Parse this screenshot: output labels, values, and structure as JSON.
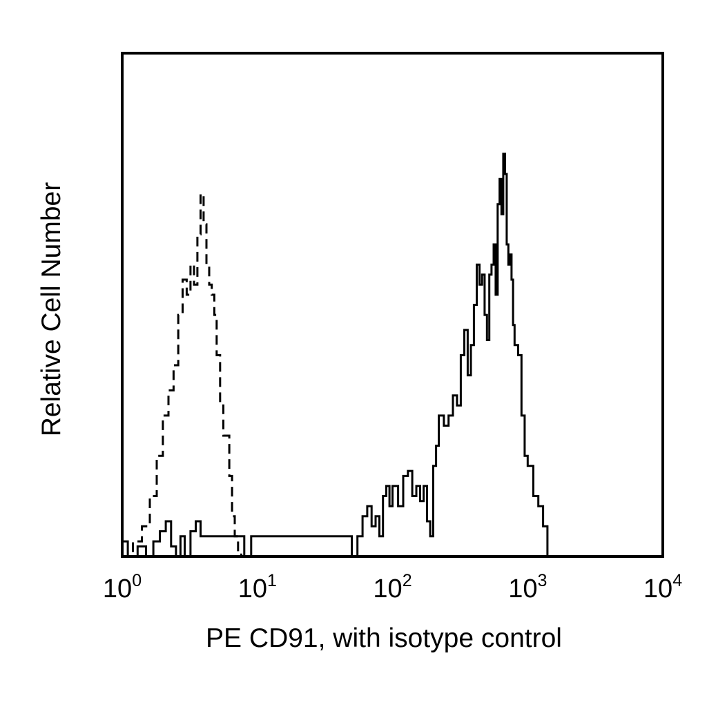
{
  "chart_data": {
    "type": "line",
    "title": "",
    "xlabel": "PE CD91, with isotype control",
    "ylabel": "Relative Cell Number",
    "x_scale": "log",
    "xlim": [
      1,
      10000
    ],
    "ylim": [
      0,
      100
    ],
    "grid": false,
    "x_ticks": [
      {
        "base": "10",
        "exp": "0"
      },
      {
        "base": "10",
        "exp": "1"
      },
      {
        "base": "10",
        "exp": "2"
      },
      {
        "base": "10",
        "exp": "3"
      },
      {
        "base": "10",
        "exp": "4"
      }
    ],
    "series": [
      {
        "style": "dashed",
        "color": "#000000",
        "x": [
          1.0,
          1.2,
          1.4,
          1.6,
          1.8,
          2.0,
          2.2,
          2.4,
          2.6,
          2.8,
          3.0,
          3.2,
          3.4,
          3.6,
          3.8,
          4.0,
          4.2,
          4.4,
          4.6,
          4.8,
          5.0,
          5.3,
          5.6,
          5.9,
          6.2,
          6.5,
          6.8,
          7.2,
          7.6,
          8.0,
          9.0,
          10,
          30,
          100,
          300,
          1000,
          1400,
          10000
        ],
        "y": [
          0,
          3,
          6,
          12,
          20,
          28,
          33,
          38,
          48,
          55,
          52,
          58,
          54,
          64,
          72,
          66,
          58,
          54,
          52,
          48,
          40,
          30,
          24,
          24,
          16,
          8,
          4,
          1,
          0,
          0,
          0,
          0,
          0,
          0,
          0,
          0,
          0,
          0
        ]
      },
      {
        "style": "solid",
        "color": "#000000",
        "x": [
          1.0,
          1.1,
          1.3,
          1.5,
          1.7,
          1.9,
          2.1,
          2.3,
          2.5,
          2.7,
          2.9,
          3.2,
          3.5,
          3.8,
          4.2,
          5.0,
          6.0,
          7.0,
          8.0,
          9.0,
          10,
          12,
          15,
          20,
          25,
          30,
          40,
          50,
          55,
          60,
          65,
          70,
          75,
          80,
          85,
          90,
          95,
          100,
          110,
          120,
          130,
          140,
          150,
          160,
          170,
          180,
          190,
          200,
          210,
          220,
          240,
          260,
          280,
          300,
          320,
          340,
          360,
          380,
          400,
          420,
          440,
          460,
          480,
          500,
          520,
          540,
          560,
          580,
          600,
          620,
          640,
          660,
          680,
          700,
          720,
          740,
          760,
          780,
          800,
          850,
          900,
          950,
          1000,
          1100,
          1200,
          1300,
          1400,
          10000
        ],
        "y": [
          3,
          0,
          2,
          0,
          3,
          5,
          7,
          2,
          0,
          4,
          0,
          5,
          7,
          4,
          4,
          4,
          4,
          4,
          0,
          4,
          4,
          4,
          4,
          4,
          4,
          4,
          4,
          0,
          4,
          8,
          10,
          6,
          8,
          4,
          12,
          14,
          10,
          14,
          10,
          16,
          17,
          12,
          14,
          11,
          14,
          7,
          4,
          18,
          22,
          28,
          26,
          28,
          32,
          30,
          40,
          45,
          36,
          42,
          50,
          58,
          54,
          56,
          48,
          43,
          56,
          58,
          62,
          52,
          70,
          75,
          68,
          80,
          76,
          62,
          58,
          60,
          55,
          46,
          42,
          40,
          28,
          20,
          18,
          12,
          10,
          6,
          0,
          0
        ]
      }
    ]
  }
}
